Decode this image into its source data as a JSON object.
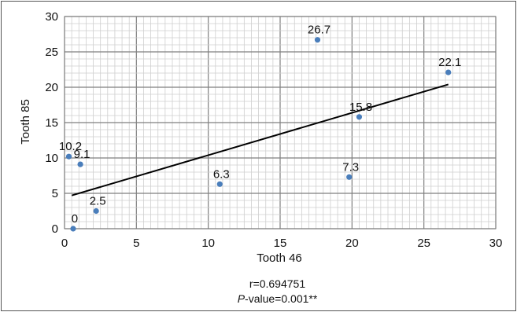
{
  "chart_data": {
    "type": "scatter",
    "title": "",
    "xlabel": "Tooth 46",
    "ylabel": "Tooth 85",
    "xlim": [
      0,
      30
    ],
    "ylim": [
      0,
      30
    ],
    "xticks": [
      0,
      5,
      10,
      15,
      20,
      25,
      30
    ],
    "yticks": [
      0,
      5,
      10,
      15,
      20,
      25,
      30
    ],
    "grid": true,
    "legend": "none",
    "marker_color": "#4a7ebb",
    "line_color": "#000000",
    "points": [
      {
        "x": 0.6,
        "y": 0,
        "label": "0"
      },
      {
        "x": 2.2,
        "y": 2.5,
        "label": "2.5"
      },
      {
        "x": 0.3,
        "y": 10.2,
        "label": "10.2"
      },
      {
        "x": 1.1,
        "y": 9.1,
        "label": "9.1"
      },
      {
        "x": 10.8,
        "y": 6.3,
        "label": "6.3"
      },
      {
        "x": 17.6,
        "y": 26.7,
        "label": "26.7"
      },
      {
        "x": 19.8,
        "y": 7.3,
        "label": "7.3"
      },
      {
        "x": 20.5,
        "y": 15.8,
        "label": "15.8"
      },
      {
        "x": 26.7,
        "y": 22.1,
        "label": "22.1"
      }
    ],
    "trendline": {
      "x": [
        0.5,
        26.7
      ],
      "y": [
        4.7,
        20.4
      ]
    },
    "annotations": {
      "r": "r=0.694751",
      "p_italic": "P",
      "p_rest": "-value=0.001**"
    }
  }
}
